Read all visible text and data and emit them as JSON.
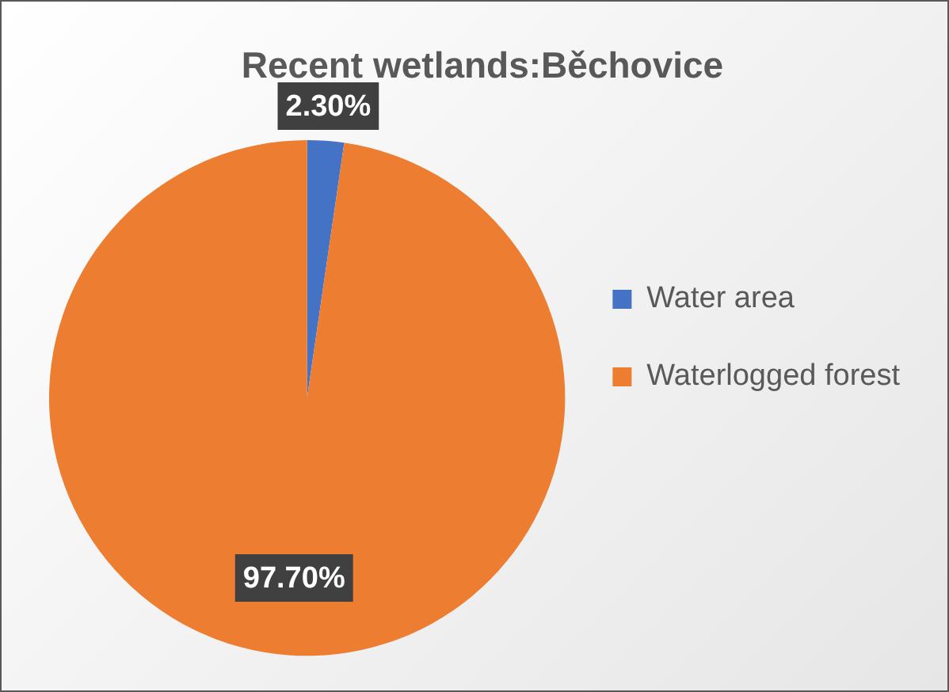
{
  "chart_data": {
    "type": "pie",
    "title": "Recent wetlands:Běchovice",
    "categories": [
      "Water area",
      "Waterlogged forest"
    ],
    "values": [
      2.3,
      97.7
    ],
    "colors": [
      "#4472c4",
      "#ed7d31"
    ],
    "value_labels": [
      "2.30%",
      "97.70%"
    ],
    "legend": "right"
  }
}
